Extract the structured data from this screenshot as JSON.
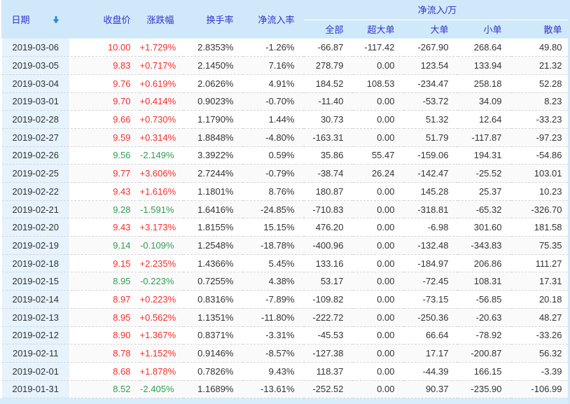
{
  "table": {
    "headers": {
      "date": "日期",
      "close": "收盘价",
      "change": "涨跌幅",
      "turnover": "换手率",
      "inflow_rate": "净流入率",
      "net_inflow_group": "净流入/万",
      "sub_all": "全部",
      "sub_super_large": "超大单",
      "sub_large": "大单",
      "sub_small": "小单",
      "sub_retail": "散单"
    },
    "icons": {
      "date_sort": "sort-descending-arrow"
    },
    "rows": [
      {
        "date": "2019-03-06",
        "close": "10.00",
        "change": "+1.729%",
        "turnover": "2.8353%",
        "inflow_rate": "-1.26%",
        "all": "-66.87",
        "super_large": "-117.42",
        "large": "-267.90",
        "small": "268.64",
        "retail": "49.80"
      },
      {
        "date": "2019-03-05",
        "close": "9.83",
        "change": "+0.717%",
        "turnover": "2.1450%",
        "inflow_rate": "7.16%",
        "all": "278.79",
        "super_large": "0.00",
        "large": "123.54",
        "small": "133.94",
        "retail": "21.32"
      },
      {
        "date": "2019-03-04",
        "close": "9.76",
        "change": "+0.619%",
        "turnover": "2.0626%",
        "inflow_rate": "4.91%",
        "all": "184.52",
        "super_large": "108.53",
        "large": "-234.47",
        "small": "258.18",
        "retail": "52.28"
      },
      {
        "date": "2019-03-01",
        "close": "9.70",
        "change": "+0.414%",
        "turnover": "0.9023%",
        "inflow_rate": "-0.70%",
        "all": "-11.40",
        "super_large": "0.00",
        "large": "-53.72",
        "small": "34.09",
        "retail": "8.23"
      },
      {
        "date": "2019-02-28",
        "close": "9.66",
        "change": "+0.730%",
        "turnover": "1.1790%",
        "inflow_rate": "1.44%",
        "all": "30.73",
        "super_large": "0.00",
        "large": "51.32",
        "small": "12.64",
        "retail": "-33.23"
      },
      {
        "date": "2019-02-27",
        "close": "9.59",
        "change": "+0.314%",
        "turnover": "1.8848%",
        "inflow_rate": "-4.80%",
        "all": "-163.31",
        "super_large": "0.00",
        "large": "51.79",
        "small": "-117.87",
        "retail": "-97.23"
      },
      {
        "date": "2019-02-26",
        "close": "9.56",
        "change": "-2.149%",
        "turnover": "3.3922%",
        "inflow_rate": "0.59%",
        "all": "35.86",
        "super_large": "55.47",
        "large": "-159.06",
        "small": "194.31",
        "retail": "-54.86"
      },
      {
        "date": "2019-02-25",
        "close": "9.77",
        "change": "+3.606%",
        "turnover": "2.7244%",
        "inflow_rate": "-0.79%",
        "all": "-38.74",
        "super_large": "26.24",
        "large": "-142.47",
        "small": "-25.52",
        "retail": "103.01"
      },
      {
        "date": "2019-02-22",
        "close": "9.43",
        "change": "+1.616%",
        "turnover": "1.1801%",
        "inflow_rate": "8.76%",
        "all": "180.87",
        "super_large": "0.00",
        "large": "145.28",
        "small": "25.37",
        "retail": "10.23"
      },
      {
        "date": "2019-02-21",
        "close": "9.28",
        "change": "-1.591%",
        "turnover": "1.6416%",
        "inflow_rate": "-24.85%",
        "all": "-710.83",
        "super_large": "0.00",
        "large": "-318.81",
        "small": "-65.32",
        "retail": "-326.70"
      },
      {
        "date": "2019-02-20",
        "close": "9.43",
        "change": "+3.173%",
        "turnover": "1.8155%",
        "inflow_rate": "15.15%",
        "all": "476.20",
        "super_large": "0.00",
        "large": "-6.98",
        "small": "301.60",
        "retail": "181.58"
      },
      {
        "date": "2019-02-19",
        "close": "9.14",
        "change": "-0.109%",
        "turnover": "1.2548%",
        "inflow_rate": "-18.78%",
        "all": "-400.96",
        "super_large": "0.00",
        "large": "-132.48",
        "small": "-343.83",
        "retail": "75.35"
      },
      {
        "date": "2019-02-18",
        "close": "9.15",
        "change": "+2.235%",
        "turnover": "1.4366%",
        "inflow_rate": "5.45%",
        "all": "133.16",
        "super_large": "0.00",
        "large": "-184.97",
        "small": "206.86",
        "retail": "111.27"
      },
      {
        "date": "2019-02-15",
        "close": "8.95",
        "change": "-0.223%",
        "turnover": "0.7255%",
        "inflow_rate": "4.38%",
        "all": "53.17",
        "super_large": "0.00",
        "large": "-72.45",
        "small": "108.31",
        "retail": "17.31"
      },
      {
        "date": "2019-02-14",
        "close": "8.97",
        "change": "+0.223%",
        "turnover": "0.8316%",
        "inflow_rate": "-7.89%",
        "all": "-109.82",
        "super_large": "0.00",
        "large": "-73.15",
        "small": "-56.85",
        "retail": "20.18"
      },
      {
        "date": "2019-02-13",
        "close": "8.95",
        "change": "+0.562%",
        "turnover": "1.1351%",
        "inflow_rate": "-11.80%",
        "all": "-222.72",
        "super_large": "0.00",
        "large": "-250.36",
        "small": "-20.63",
        "retail": "48.27"
      },
      {
        "date": "2019-02-12",
        "close": "8.90",
        "change": "+1.367%",
        "turnover": "0.8371%",
        "inflow_rate": "-3.31%",
        "all": "-45.53",
        "super_large": "0.00",
        "large": "66.64",
        "small": "-78.92",
        "retail": "-33.26"
      },
      {
        "date": "2019-02-11",
        "close": "8.78",
        "change": "+1.152%",
        "turnover": "0.9146%",
        "inflow_rate": "-8.57%",
        "all": "-127.38",
        "super_large": "0.00",
        "large": "17.17",
        "small": "-200.87",
        "retail": "56.32"
      },
      {
        "date": "2019-02-01",
        "close": "8.68",
        "change": "+1.878%",
        "turnover": "0.7826%",
        "inflow_rate": "9.43%",
        "all": "118.37",
        "super_large": "0.00",
        "large": "-44.39",
        "small": "166.15",
        "retail": "-3.39"
      },
      {
        "date": "2019-01-31",
        "close": "8.52",
        "change": "-2.405%",
        "turnover": "1.1689%",
        "inflow_rate": "-13.61%",
        "all": "-252.52",
        "super_large": "0.00",
        "large": "90.37",
        "small": "-235.90",
        "retail": "-106.99"
      }
    ]
  },
  "colors": {
    "up": "#fa2b2b",
    "down": "#2f9e52",
    "header_bg": "#cfe9fa",
    "header_text": "#3232c8",
    "date_column_bg": "#e6f3fc",
    "sort_arrow": "#2e86d3"
  }
}
